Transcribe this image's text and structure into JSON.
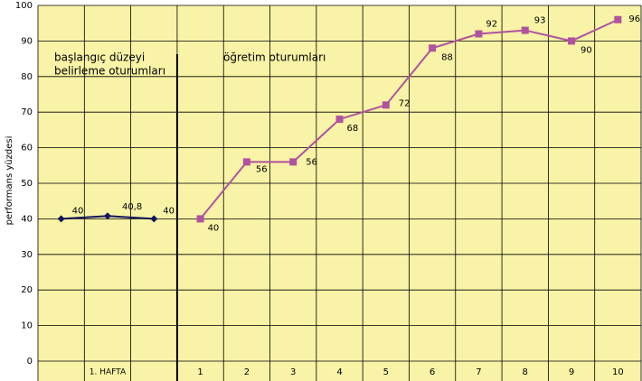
{
  "chart_data": {
    "type": "line",
    "y_label": "performans yüzdesi",
    "group_label": "1. HAFTA",
    "annotations": [
      "başlangıç düzeyi",
      "belirleme oturumları",
      "öğretim oturumları"
    ],
    "categories": [
      null,
      null,
      null,
      "1",
      "2",
      "3",
      "4",
      "5",
      "6",
      "7",
      "8",
      "9",
      "10"
    ],
    "series": [
      {
        "color": "#14145a",
        "marker": "diamond",
        "values": [
          40,
          40.8,
          40,
          null,
          null,
          null,
          null,
          null,
          null,
          null,
          null,
          null,
          null
        ],
        "value_labels": [
          "40",
          "40,8",
          "40",
          null,
          null,
          null,
          null,
          null,
          null,
          null,
          null,
          null,
          null
        ]
      },
      {
        "color": "#b0529f",
        "marker": "square",
        "values": [
          null,
          null,
          null,
          40,
          56,
          56,
          68,
          72,
          88,
          92,
          93,
          90,
          96
        ]
      }
    ],
    "ylim": [
      0,
      100
    ],
    "yticks": [
      0,
      10,
      20,
      30,
      40,
      50,
      60,
      70,
      80,
      90,
      100
    ],
    "grid": true,
    "background": "#f8f3a6"
  }
}
